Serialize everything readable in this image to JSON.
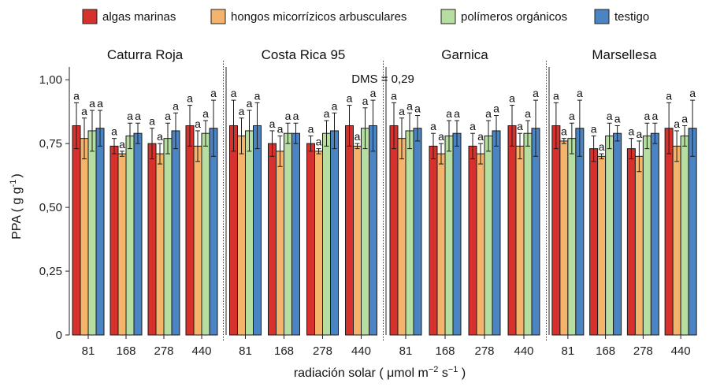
{
  "chart_data": {
    "type": "bar",
    "ylabel": "PPA ( g g",
    "ylabel_sup": "-1",
    "ylabel_end": ")",
    "xlabel_parts": [
      "radiación solar ( μmol m",
      "−2",
      " s",
      "−1",
      " )"
    ],
    "ylim": [
      0,
      1.05
    ],
    "yticks": [
      0,
      0.25,
      0.5,
      0.75,
      1.0
    ],
    "ytick_labels": [
      "0",
      "0,25",
      "0,50",
      "0,75",
      "1,00"
    ],
    "annotation": "DMS = 0,29",
    "legend_position": "top",
    "categories": [
      "81",
      "168",
      "278",
      "440"
    ],
    "series_names": [
      "algas marinas",
      "hongos micorrízicos arbusculares",
      "polímeros orgánicos",
      "testigo"
    ],
    "series_colors": [
      "#d7312e",
      "#f5b46b",
      "#b5dea0",
      "#4a84c2"
    ],
    "significance_letter": "a",
    "panels": [
      {
        "title": "Caturra Roja",
        "values": [
          [
            0.82,
            0.77,
            0.8,
            0.81
          ],
          [
            0.74,
            0.71,
            0.78,
            0.79
          ],
          [
            0.75,
            0.71,
            0.77,
            0.8
          ],
          [
            0.82,
            0.74,
            0.79,
            0.81
          ]
        ],
        "errors": [
          [
            0.09,
            0.08,
            0.08,
            0.07
          ],
          [
            0.03,
            0.01,
            0.05,
            0.04
          ],
          [
            0.06,
            0.04,
            0.06,
            0.07
          ],
          [
            0.08,
            0.06,
            0.05,
            0.11
          ]
        ]
      },
      {
        "title": "Costa Rica 95",
        "values": [
          [
            0.82,
            0.78,
            0.8,
            0.82
          ],
          [
            0.75,
            0.72,
            0.79,
            0.79
          ],
          [
            0.75,
            0.72,
            0.79,
            0.8
          ],
          [
            0.82,
            0.74,
            0.81,
            0.82
          ]
        ],
        "errors": [
          [
            0.1,
            0.07,
            0.08,
            0.09
          ],
          [
            0.05,
            0.06,
            0.04,
            0.04
          ],
          [
            0.03,
            0.01,
            0.05,
            0.07
          ],
          [
            0.08,
            0.01,
            0.08,
            0.1
          ]
        ]
      },
      {
        "title": "Garnica",
        "values": [
          [
            0.82,
            0.77,
            0.8,
            0.81
          ],
          [
            0.74,
            0.71,
            0.78,
            0.79
          ],
          [
            0.74,
            0.71,
            0.78,
            0.8
          ],
          [
            0.82,
            0.74,
            0.79,
            0.81
          ]
        ],
        "errors": [
          [
            0.09,
            0.08,
            0.07,
            0.05
          ],
          [
            0.05,
            0.04,
            0.06,
            0.05
          ],
          [
            0.05,
            0.04,
            0.06,
            0.06
          ],
          [
            0.08,
            0.05,
            0.05,
            0.11
          ]
        ]
      },
      {
        "title": "Marsellesa",
        "values": [
          [
            0.82,
            0.76,
            0.77,
            0.81
          ],
          [
            0.73,
            0.7,
            0.78,
            0.79
          ],
          [
            0.73,
            0.7,
            0.78,
            0.79
          ],
          [
            0.81,
            0.74,
            0.78,
            0.81
          ]
        ],
        "errors": [
          [
            0.09,
            0.01,
            0.06,
            0.11
          ],
          [
            0.05,
            0.01,
            0.05,
            0.03
          ],
          [
            0.04,
            0.06,
            0.05,
            0.04
          ],
          [
            0.1,
            0.06,
            0.04,
            0.11
          ]
        ]
      }
    ]
  }
}
